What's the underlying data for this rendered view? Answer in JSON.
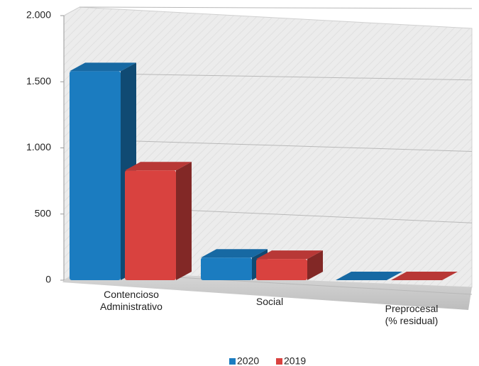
{
  "chart_data": {
    "type": "bar3d",
    "categories": [
      "Contencioso\nAdministrativo",
      "Social",
      "Preprocesal\n(% residual)"
    ],
    "series": [
      {
        "name": "2020",
        "color": "#1b7cc0",
        "values": [
          1580,
          170,
          0
        ]
      },
      {
        "name": "2019",
        "color": "#d9423f",
        "values": [
          830,
          160,
          0
        ]
      }
    ],
    "ylim": [
      0,
      2000
    ],
    "yticks": [
      0,
      500,
      {
        "value": 1000,
        "label": "1.000"
      },
      {
        "value": 1500,
        "label": "1.500"
      },
      {
        "value": 2000,
        "label": "2.000"
      }
    ],
    "grid": true,
    "legend": "bottom"
  }
}
